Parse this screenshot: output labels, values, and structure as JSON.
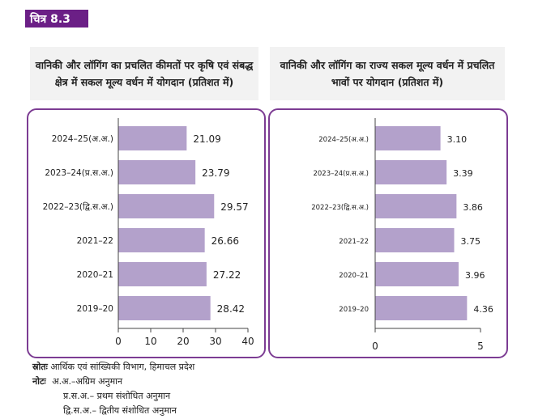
{
  "figure_label": "चित्र 8.3",
  "left_title": "वानिकी और लॉगिंग का प्रचलित कीमतों पर कृषि एवं संबद्ध क्षेत्र में सकल मूल्य वर्धन में योगदान (प्रतिशत में)",
  "right_title": "वानिकी और लॉगिंग का राज्य सकल मूल्य वर्धन में प्रचलित भावों पर योगदान (प्रतिशत में)",
  "source_label": "स्रोतः",
  "source_text": "आर्थिक एवं सांख्यिकी विभाग, हिमाचल प्रदेश",
  "notes_label": "नोटः",
  "notes": [
    "अ.अ.–अग्रिम अनुमान",
    "प्र.स.अ.– प्रथम संशोधित अनुमान",
    "द्वि.स.अ.– द्वितीय संशोधित अनुमान"
  ],
  "colors": {
    "bar": "#b3a1cb",
    "frame": "#7c3c93",
    "badge": "#6b1f86"
  },
  "chart_data": [
    {
      "type": "bar",
      "orientation": "horizontal",
      "title": "वानिकी और लॉगिंग का प्रचलित कीमतों पर कृषि एवं संबद्ध क्षेत्र में सकल मूल्य वर्धन में योगदान (प्रतिशत में)",
      "categories": [
        "2024–25(अ.अ.)",
        "2023–24(प्र.स.अ.)",
        "2022–23(द्वि.स.अ.)",
        "2021–22",
        "2020–21",
        "2019–20"
      ],
      "values": [
        21.09,
        23.79,
        29.57,
        26.66,
        27.22,
        28.42
      ],
      "value_labels": [
        "21.09",
        "23.79",
        "29.57",
        "26.66",
        "27.22",
        "28.42"
      ],
      "xlim": [
        0,
        40
      ],
      "xticks": [
        0,
        10,
        20,
        30,
        40
      ],
      "grid": false
    },
    {
      "type": "bar",
      "orientation": "horizontal",
      "title": "वानिकी और लॉगिंग का राज्य सकल मूल्य वर्धन में प्रचलित भावों पर योगदान (प्रतिशत में)",
      "categories": [
        "2024–25(अ.अ.)",
        "2023–24(प्र.स.अ.)",
        "2022–23(द्वि.स.अ.)",
        "2021–22",
        "2020–21",
        "2019–20"
      ],
      "values": [
        3.1,
        3.39,
        3.86,
        3.75,
        3.96,
        4.36
      ],
      "value_labels": [
        "3.10",
        "3.39",
        "3.86",
        "3.75",
        "3.96",
        "4.36"
      ],
      "xlim": [
        0,
        5
      ],
      "xticks": [
        0,
        5
      ],
      "grid": false
    }
  ]
}
